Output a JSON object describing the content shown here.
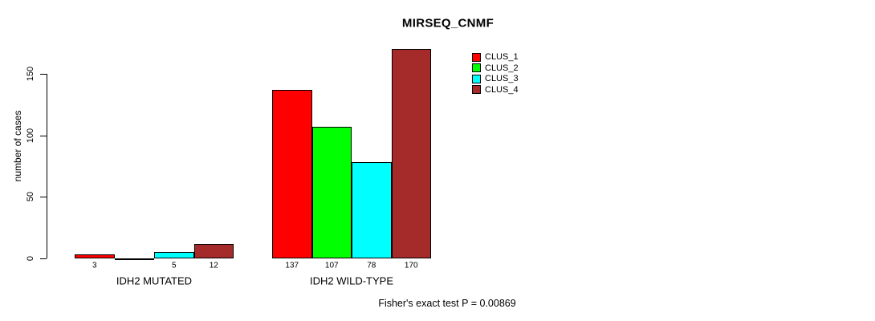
{
  "chart_data": {
    "type": "bar",
    "title": "MIRSEQ_CNMF",
    "xlabel": "",
    "ylabel": "number of cases",
    "yticks": [
      0,
      50,
      100,
      150
    ],
    "ylim": [
      0,
      170
    ],
    "grid": false,
    "legend_position": "top-right",
    "categories": [
      "IDH2 MUTATED",
      "IDH2 WILD-TYPE"
    ],
    "series": [
      {
        "name": "CLUS_1",
        "color": "#ff0000",
        "values": [
          3,
          137
        ]
      },
      {
        "name": "CLUS_2",
        "color": "#00ff00",
        "values": [
          0,
          107
        ]
      },
      {
        "name": "CLUS_3",
        "color": "#00ffff",
        "values": [
          5,
          78
        ]
      },
      {
        "name": "CLUS_4",
        "color": "#a52a2a",
        "values": [
          12,
          170
        ]
      }
    ],
    "bar_value_labels": {
      "IDH2 MUTATED": [
        "3",
        "",
        "5",
        "12"
      ],
      "IDH2 WILD-TYPE": [
        "137",
        "107",
        "78",
        "170"
      ]
    },
    "annotation": "Fisher's exact test P = 0.00869",
    "colors": {
      "axis": "#000000",
      "text": "#000000",
      "background": "#ffffff"
    }
  }
}
